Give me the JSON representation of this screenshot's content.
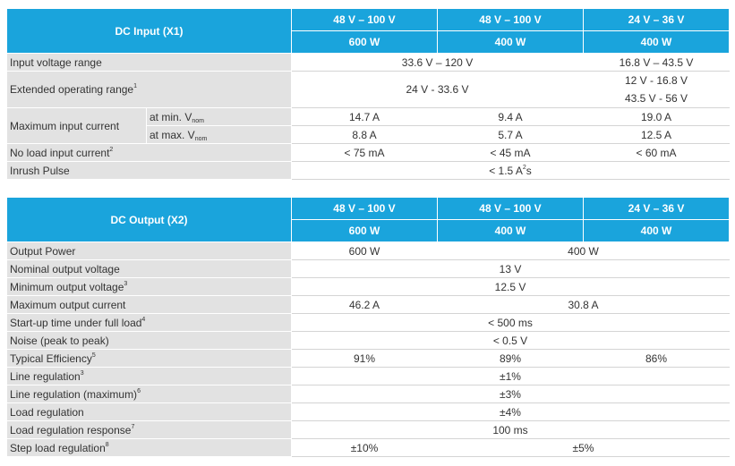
{
  "input_table": {
    "title": "DC Input (X1)",
    "columns": [
      {
        "voltage": "48 V – 100 V",
        "power": "600 W"
      },
      {
        "voltage": "48 V – 100 V",
        "power": "400 W"
      },
      {
        "voltage": "24 V – 36 V",
        "power": "400 W"
      }
    ],
    "rows": {
      "input_voltage_range": {
        "label": "Input voltage range",
        "span_12": "33.6 V – 120 V",
        "c3": "16.8 V – 43.5 V"
      },
      "extended_range": {
        "label": "Extended operating range",
        "sup": "1",
        "span_12": "24 V - 33.6 V",
        "c3_line1": "12 V - 16.8 V",
        "c3_line2": "43.5 V - 56 V"
      },
      "max_input_current": {
        "label": "Maximum input current",
        "min": {
          "sub_label": "at min. V",
          "sub_index": "nom",
          "c1": "14.7 A",
          "c2": "9.4 A",
          "c3": "19.0 A"
        },
        "max": {
          "sub_label": "at max. V",
          "sub_index": "nom",
          "c1": "8.8 A",
          "c2": "5.7 A",
          "c3": "12.5 A"
        }
      },
      "no_load": {
        "label": "No load  input current",
        "sup": "2",
        "c1": "< 75 mA",
        "c2": "< 45 mA",
        "c3": "< 60 mA"
      },
      "inrush": {
        "label": "Inrush Pulse",
        "value": "< 1.5 A",
        "value_sup": "2",
        "value_unit": "s"
      }
    }
  },
  "output_table": {
    "title": "DC Output (X2)",
    "columns": [
      {
        "voltage": "48 V – 100 V",
        "power": "600 W"
      },
      {
        "voltage": "48 V – 100 V",
        "power": "400 W"
      },
      {
        "voltage": "24 V – 36 V",
        "power": "400 W"
      }
    ],
    "rows": {
      "output_power": {
        "label": "Output Power",
        "c1": "600 W",
        "span_23": "400 W"
      },
      "nominal_voltage": {
        "label": "Nominal output voltage",
        "value": "13 V"
      },
      "minimum_voltage": {
        "label": "Minimum output voltage",
        "sup": "3",
        "value": "12.5 V"
      },
      "max_output_current": {
        "label": "Maximum output current",
        "c1": "46.2 A",
        "span_23": "30.8 A"
      },
      "startup_time": {
        "label": "Start-up time under full load",
        "sup": "4",
        "value": "< 500 ms"
      },
      "noise": {
        "label": "Noise (peak to peak)",
        "value": "< 0.5 V"
      },
      "efficiency": {
        "label": "Typical Efficiency",
        "sup": "5",
        "c1": "91%",
        "c2": "89%",
        "c3": "86%"
      },
      "line_regulation": {
        "label": "Line regulation",
        "sup": "3",
        "value": "±1%"
      },
      "line_regulation_max": {
        "label": "Line regulation (maximum)",
        "sup": "6",
        "value": "±3%"
      },
      "load_regulation": {
        "label": "Load regulation",
        "value": "±4%"
      },
      "load_regulation_response": {
        "label": "Load regulation response",
        "sup": "7",
        "value": "100 ms"
      },
      "step_load_regulation": {
        "label": "Step load regulation",
        "sup": "8",
        "c1": "±10%",
        "span_23": "±5%"
      }
    }
  }
}
